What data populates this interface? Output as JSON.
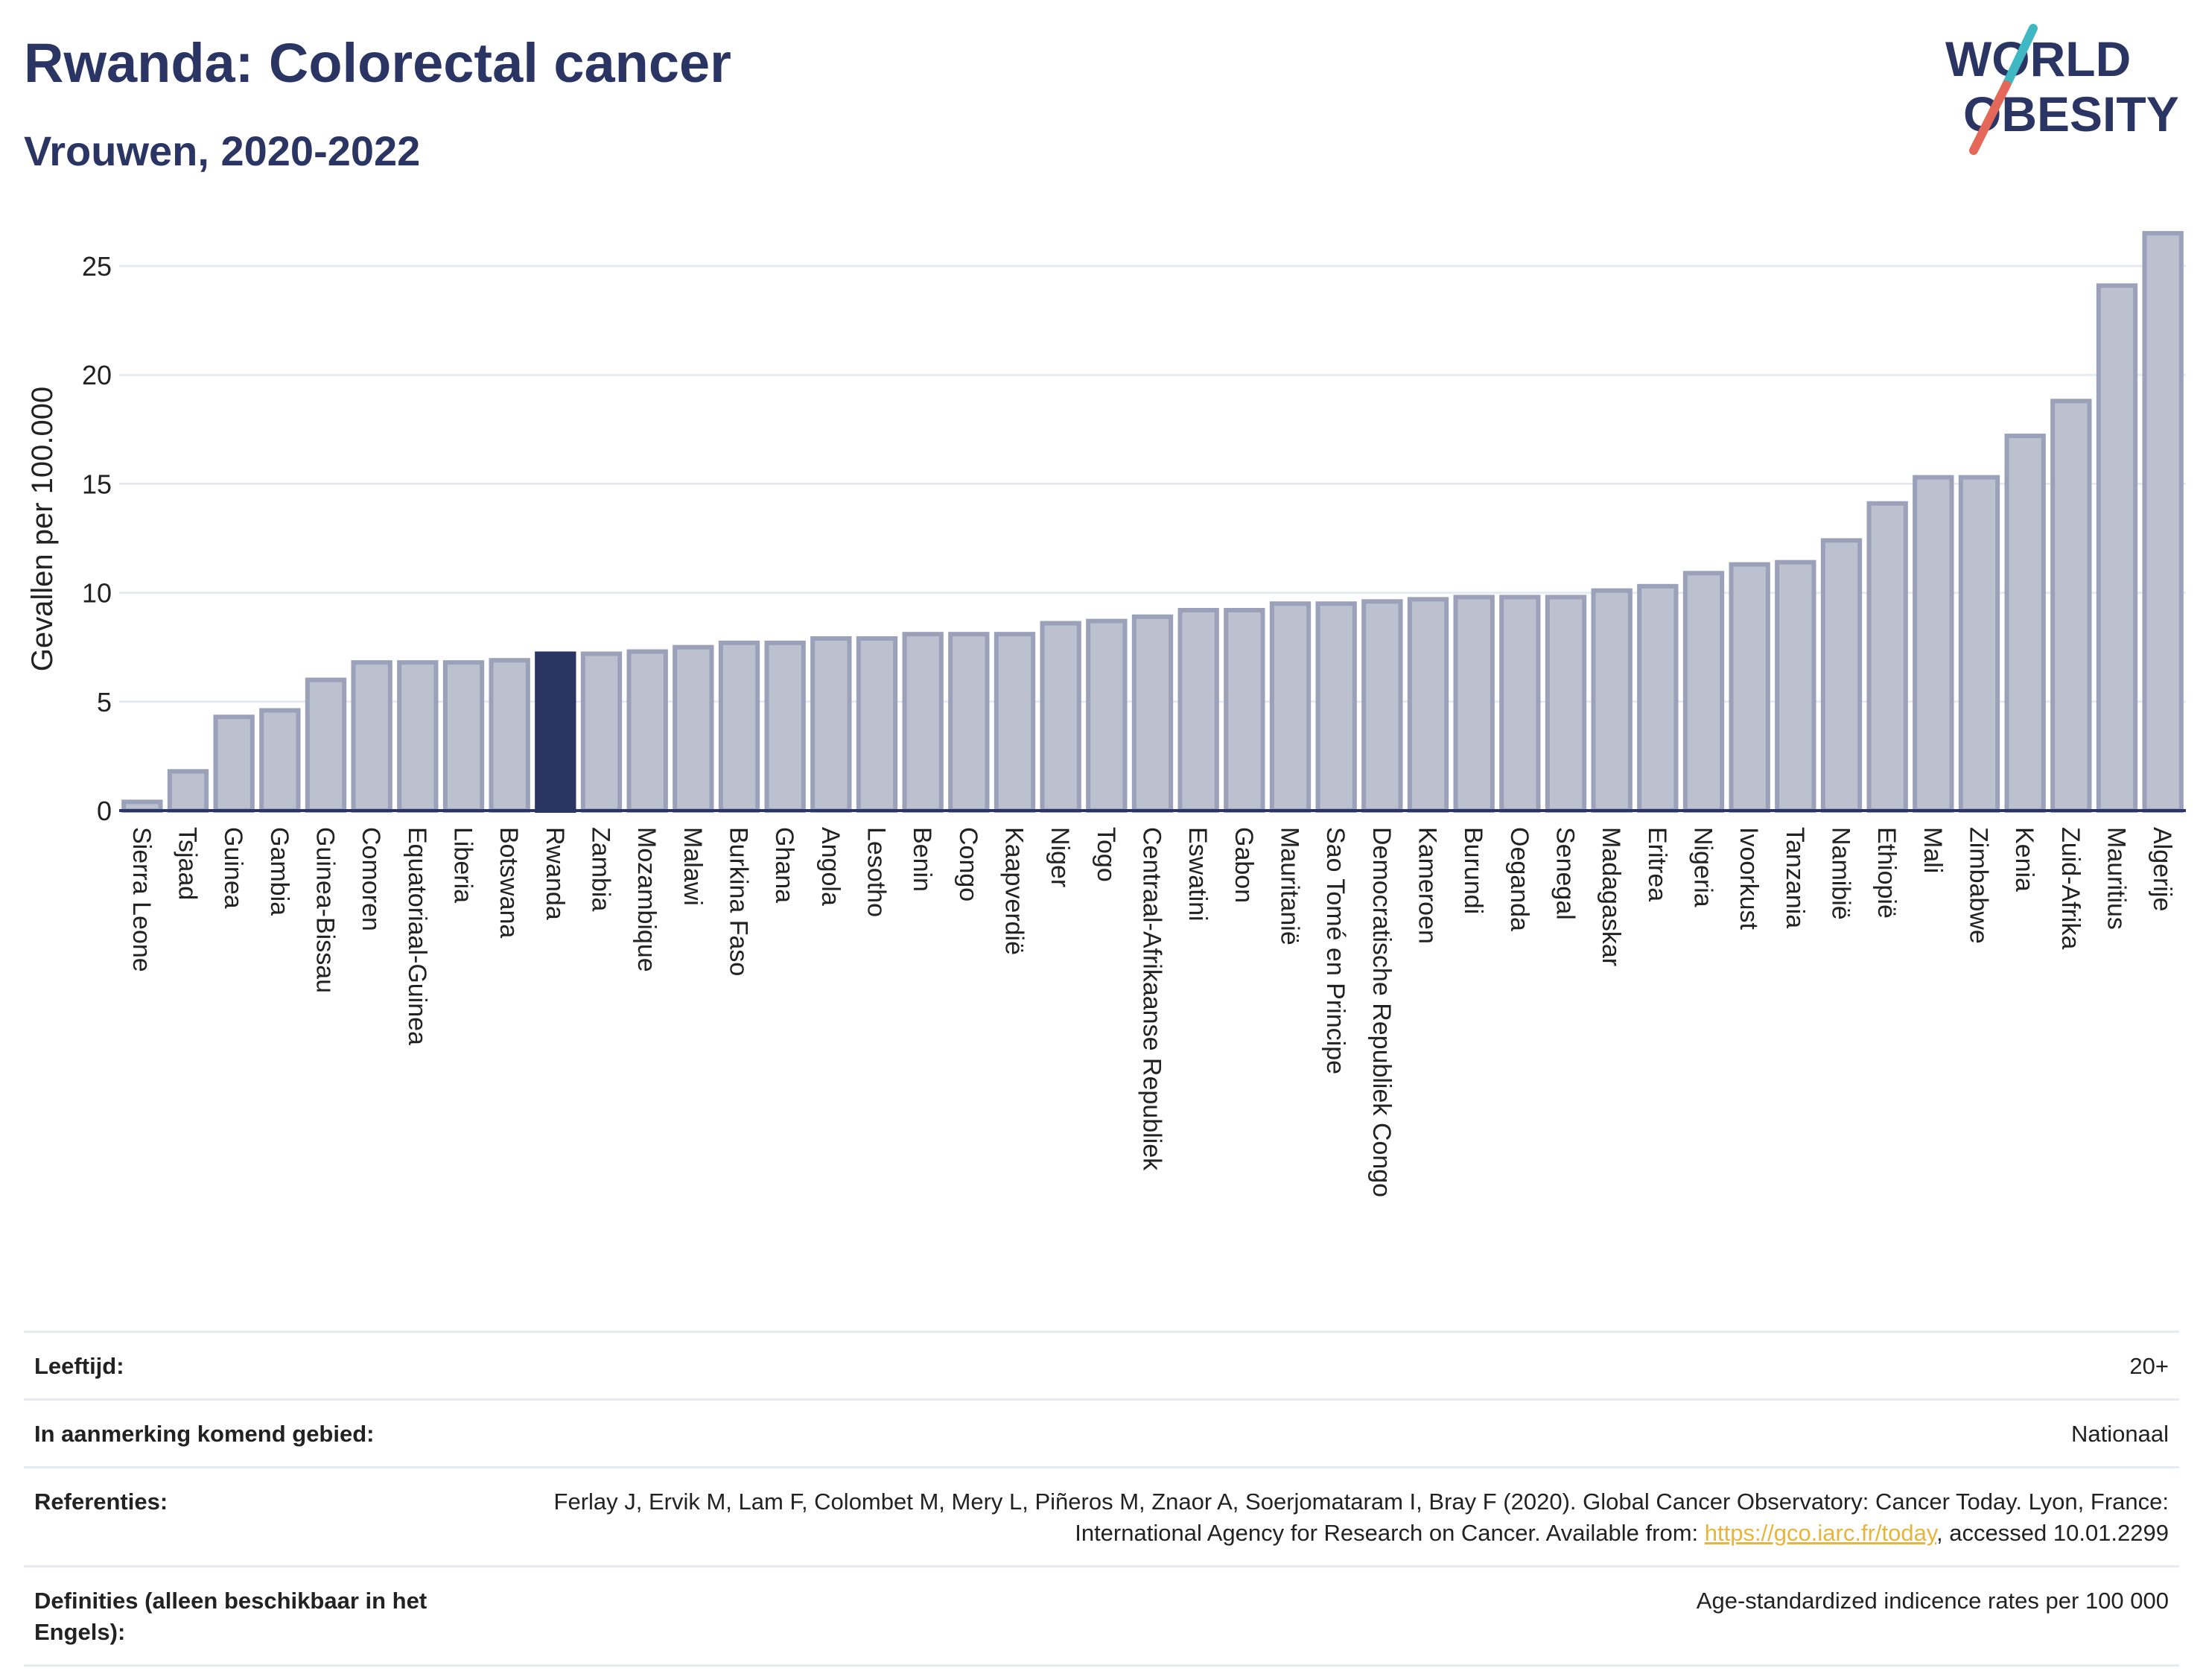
{
  "header": {
    "title": "Rwanda: Colorectal cancer",
    "subtitle": "Vrouwen, 2020-2022",
    "logo_line1": "WORLD",
    "logo_line2": "OBESITY"
  },
  "colors": {
    "bar": "#bcc1d0",
    "bar_border": "#9aa1b9",
    "highlight": "#2b3563",
    "title": "#2b3563",
    "link": "#e8b53c"
  },
  "chart_data": {
    "type": "bar",
    "ylabel": "Gevallen per 100.000",
    "ylim": [
      0,
      27
    ],
    "yticks": [
      0,
      5,
      10,
      15,
      20,
      25
    ],
    "grid": true,
    "highlight": "Rwanda",
    "categories": [
      "Sierra Leone",
      "Tsjaad",
      "Guinea",
      "Gambia",
      "Guinea-Bissau",
      "Comoren",
      "Equatoriaal-Guinea",
      "Liberia",
      "Botswana",
      "Rwanda",
      "Zambia",
      "Mozambique",
      "Malawi",
      "Burkina Faso",
      "Ghana",
      "Angola",
      "Lesotho",
      "Benin",
      "Congo",
      "Kaapverdië",
      "Niger",
      "Togo",
      "Centraal-Afrikaanse Republiek",
      "Eswatini",
      "Gabon",
      "Mauritanië",
      "Sao Tomé en Principe",
      "Democratische Republiek Congo",
      "Kameroen",
      "Burundi",
      "Oeganda",
      "Senegal",
      "Madagaskar",
      "Eritrea",
      "Nigeria",
      "Ivoorkust",
      "Tanzania",
      "Namibië",
      "Ethiopië",
      "Mali",
      "Zimbabwe",
      "Kenia",
      "Zuid-Afrika",
      "Mauritius",
      "Algerije"
    ],
    "values": [
      0.4,
      1.8,
      4.3,
      4.6,
      6.0,
      6.8,
      6.8,
      6.8,
      6.9,
      7.2,
      7.2,
      7.3,
      7.5,
      7.7,
      7.7,
      7.9,
      7.9,
      8.1,
      8.1,
      8.1,
      8.6,
      8.7,
      8.9,
      9.2,
      9.2,
      9.5,
      9.5,
      9.6,
      9.7,
      9.8,
      9.8,
      9.8,
      10.1,
      10.3,
      10.9,
      11.3,
      11.4,
      12.4,
      14.1,
      15.3,
      15.3,
      17.2,
      18.8,
      24.1,
      26.5
    ]
  },
  "meta": {
    "age_label": "Leeftijd:",
    "age_value": "20+",
    "area_label": "In aanmerking komend gebied:",
    "area_value": "Nationaal",
    "ref_label": "Referenties:",
    "ref_text_1": "Ferlay J, Ervik M, Lam F, Colombet M, Mery L, Piñeros M, Znaor A, Soerjomataram I, Bray F (2020). Global Cancer Observatory: Cancer Today. Lyon, France: International Agency for Research on Cancer. Available from: ",
    "ref_link": "https://gco.iarc.fr/today",
    "ref_text_2": ", accessed 10.01.2299",
    "def_label": "Definities (alleen beschikbaar in het Engels):",
    "def_value": "Age-standardized indicence rates per 100 000"
  }
}
